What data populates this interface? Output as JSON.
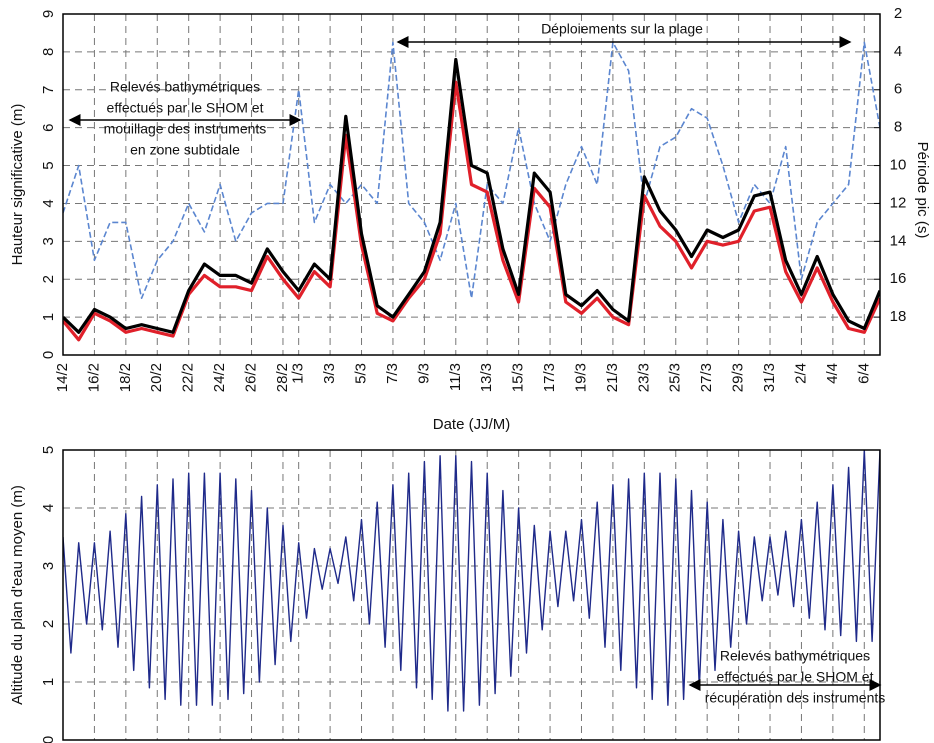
{
  "chart_data": [
    {
      "type": "line",
      "xlabel": "Date (JJ/M)",
      "ylabel": "Hauteur significative (m)",
      "y2label": "Période pic (s)",
      "xlim": [
        0,
        52
      ],
      "ylim": [
        0,
        9
      ],
      "y2lim": [
        20,
        2
      ],
      "xticks": [
        {
          "value": 0,
          "label": "14/2"
        },
        {
          "value": 2,
          "label": "16/2"
        },
        {
          "value": 4,
          "label": "18/2"
        },
        {
          "value": 6,
          "label": "20/2"
        },
        {
          "value": 8,
          "label": "22/2"
        },
        {
          "value": 10,
          "label": "24/2"
        },
        {
          "value": 12,
          "label": "26/2"
        },
        {
          "value": 14,
          "label": "28/2"
        },
        {
          "value": 15,
          "label": "1/3"
        },
        {
          "value": 17,
          "label": "3/3"
        },
        {
          "value": 19,
          "label": "5/3"
        },
        {
          "value": 21,
          "label": "7/3"
        },
        {
          "value": 23,
          "label": "9/3"
        },
        {
          "value": 25,
          "label": "11/3"
        },
        {
          "value": 27,
          "label": "13/3"
        },
        {
          "value": 29,
          "label": "15/3"
        },
        {
          "value": 31,
          "label": "17/3"
        },
        {
          "value": 33,
          "label": "19/3"
        },
        {
          "value": 35,
          "label": "21/3"
        },
        {
          "value": 37,
          "label": "23/3"
        },
        {
          "value": 39,
          "label": "25/3"
        },
        {
          "value": 41,
          "label": "27/3"
        },
        {
          "value": 43,
          "label": "29/3"
        },
        {
          "value": 45,
          "label": "31/3"
        },
        {
          "value": 47,
          "label": "2/4"
        },
        {
          "value": 49,
          "label": "4/4"
        },
        {
          "value": 51,
          "label": "6/4"
        }
      ],
      "yticks": [
        0,
        1,
        2,
        3,
        4,
        5,
        6,
        7,
        8,
        9
      ],
      "y2ticks": [
        2,
        4,
        6,
        8,
        10,
        12,
        14,
        16,
        18
      ],
      "grid": true,
      "x": [
        0,
        1,
        2,
        3,
        4,
        5,
        6,
        7,
        8,
        9,
        10,
        11,
        12,
        13,
        14,
        15,
        16,
        17,
        18,
        19,
        20,
        21,
        22,
        23,
        24,
        25,
        26,
        27,
        28,
        29,
        30,
        31,
        32,
        33,
        34,
        35,
        36,
        37,
        38,
        39,
        40,
        41,
        42,
        43,
        44,
        45,
        46,
        47,
        48,
        49,
        50,
        51,
        52
      ],
      "series": [
        {
          "color": "#e0202a",
          "values": [
            0.9,
            0.4,
            1.1,
            0.9,
            0.6,
            0.7,
            0.6,
            0.5,
            1.6,
            2.1,
            1.8,
            1.8,
            1.7,
            2.6,
            2.0,
            1.5,
            2.2,
            1.8,
            5.8,
            2.9,
            1.1,
            0.9,
            1.5,
            2.0,
            3.2,
            7.2,
            4.5,
            4.3,
            2.5,
            1.4,
            4.4,
            3.9,
            1.4,
            1.1,
            1.5,
            1.0,
            0.8,
            4.2,
            3.4,
            3.0,
            2.3,
            3.0,
            2.9,
            3.0,
            3.8,
            3.9,
            2.2,
            1.4,
            2.3,
            1.4,
            0.7,
            0.6,
            1.5
          ],
          "axis": "y"
        },
        {
          "color": "#000000",
          "values": [
            1.0,
            0.6,
            1.2,
            1.0,
            0.7,
            0.8,
            0.7,
            0.6,
            1.7,
            2.4,
            2.1,
            2.1,
            1.9,
            2.8,
            2.2,
            1.7,
            2.4,
            2.0,
            6.3,
            3.2,
            1.3,
            1.0,
            1.6,
            2.2,
            3.5,
            7.8,
            5.0,
            4.8,
            2.8,
            1.6,
            4.8,
            4.3,
            1.6,
            1.3,
            1.7,
            1.2,
            0.9,
            4.7,
            3.8,
            3.3,
            2.6,
            3.3,
            3.1,
            3.3,
            4.2,
            4.3,
            2.5,
            1.6,
            2.6,
            1.6,
            0.9,
            0.7,
            1.7
          ],
          "axis": "y"
        },
        {
          "color": "#5b86d0",
          "dashed": true,
          "axis": "y2",
          "values": [
            12.5,
            10,
            15,
            13,
            13,
            17,
            15,
            14,
            12,
            13.5,
            11,
            14,
            12.5,
            12,
            12,
            6,
            13,
            11,
            12,
            11,
            12,
            3.5,
            12,
            13,
            15,
            12,
            17,
            11,
            12,
            8,
            12,
            14,
            11,
            9,
            11,
            3.5,
            5,
            12,
            9,
            8.5,
            7,
            7.5,
            10,
            13,
            11,
            12,
            9,
            16,
            13,
            12,
            11,
            3.5,
            8
          ]
        }
      ],
      "annotations": [
        {
          "lines": [
            "Relevés bathymétriques",
            "effectués par le SHOM et",
            "mouillage des instruments",
            "en zone subtidale"
          ]
        },
        {
          "lines": [
            "Déploiements sur la plage"
          ]
        }
      ]
    },
    {
      "type": "line",
      "ylabel": "Altitude du plan d'eau moyen (m)",
      "xlim": [
        0,
        52
      ],
      "ylim": [
        0,
        5
      ],
      "yticks": [
        0,
        1,
        2,
        3,
        4,
        5
      ],
      "grid": true,
      "x": [
        0,
        0.5,
        1,
        1.5,
        2,
        2.5,
        3,
        3.5,
        4,
        4.5,
        5,
        5.5,
        6,
        6.5,
        7,
        7.5,
        8,
        8.5,
        9,
        9.5,
        10,
        10.5,
        11,
        11.5,
        12,
        12.5,
        13,
        13.5,
        14,
        14.5,
        15,
        15.5,
        16,
        16.5,
        17,
        17.5,
        18,
        18.5,
        19,
        19.5,
        20,
        20.5,
        21,
        21.5,
        22,
        22.5,
        23,
        23.5,
        24,
        24.5,
        25,
        25.5,
        26,
        26.5,
        27,
        27.5,
        28,
        28.5,
        29,
        29.5,
        30,
        30.5,
        31,
        31.5,
        32,
        32.5,
        33,
        33.5,
        34,
        34.5,
        35,
        35.5,
        36,
        36.5,
        37,
        37.5,
        38,
        38.5,
        39,
        39.5,
        40,
        40.5,
        41,
        41.5,
        42,
        42.5,
        43,
        43.5,
        44,
        44.5,
        45,
        45.5,
        46,
        46.5,
        47,
        47.5,
        48,
        48.5,
        49,
        49.5,
        50,
        50.5,
        51,
        51.5,
        52
      ],
      "series": [
        {
          "color": "#1f2a8a",
          "values": [
            3.5,
            1.5,
            3.4,
            2.0,
            3.4,
            1.9,
            3.6,
            1.6,
            3.9,
            1.2,
            4.2,
            0.9,
            4.4,
            0.7,
            4.5,
            0.6,
            4.6,
            0.6,
            4.6,
            0.6,
            4.6,
            0.7,
            4.5,
            0.8,
            4.3,
            1.0,
            4.0,
            1.3,
            3.7,
            1.7,
            3.4,
            2.1,
            3.3,
            2.6,
            3.3,
            2.7,
            3.5,
            2.4,
            3.8,
            2.0,
            4.1,
            1.6,
            4.4,
            1.2,
            4.6,
            0.9,
            4.8,
            0.7,
            4.9,
            0.5,
            4.9,
            0.5,
            4.8,
            0.6,
            4.6,
            0.8,
            4.3,
            1.1,
            4.0,
            1.5,
            3.7,
            1.9,
            3.6,
            2.3,
            3.6,
            2.4,
            3.8,
            2.1,
            4.1,
            1.6,
            4.4,
            1.2,
            4.5,
            0.9,
            4.6,
            0.7,
            4.6,
            0.6,
            4.5,
            0.7,
            4.3,
            0.9,
            4.1,
            1.2,
            3.8,
            1.6,
            3.6,
            2.0,
            3.5,
            2.4,
            3.5,
            2.5,
            3.6,
            2.3,
            3.8,
            2.1,
            4.1,
            1.9,
            4.4,
            1.8,
            4.7,
            1.7,
            5.0,
            1.7,
            5.0
          ]
        }
      ],
      "annotations": [
        {
          "lines": [
            "Relevés bathymétriques",
            "effectués par le SHOM et",
            "récupération des instruments"
          ]
        }
      ]
    }
  ]
}
